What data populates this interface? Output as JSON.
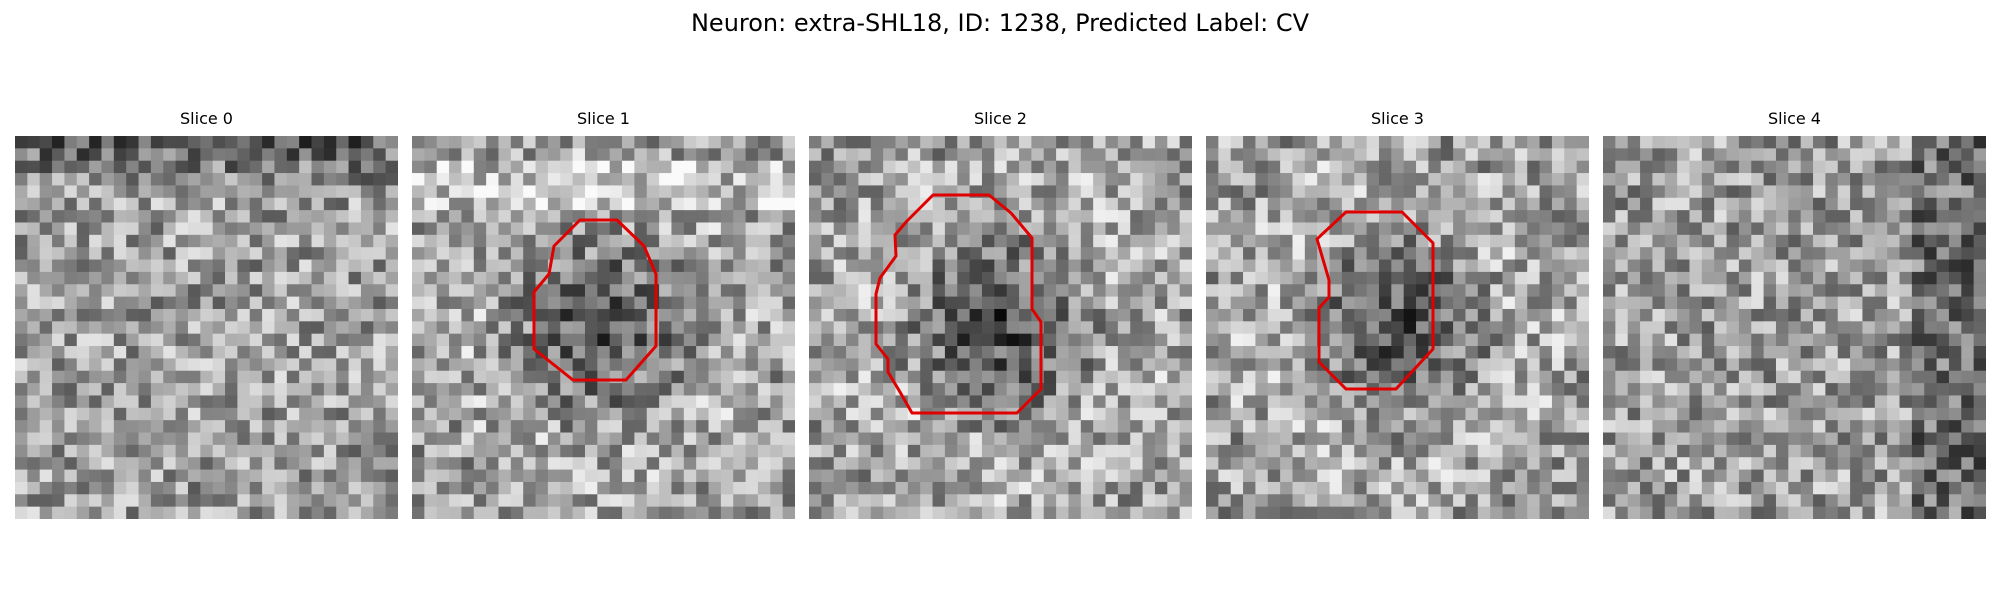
{
  "figure": {
    "title": "Neuron: extra-SHL18, ID: 1238, Predicted Label: CV"
  },
  "colors": {
    "contour": "#e00000",
    "background": "#ffffff"
  },
  "panels": [
    {
      "title": "Slice 0",
      "seed": 11,
      "dark_center": 0.0,
      "top_band": "dark"
    },
    {
      "title": "Slice 1",
      "seed": 23,
      "dark_center": 0.55,
      "top_band": "light"
    },
    {
      "title": "Slice 2",
      "seed": 37,
      "dark_center": 0.6,
      "top_band": "none"
    },
    {
      "title": "Slice 3",
      "seed": 41,
      "dark_center": 0.55,
      "top_band": "none"
    },
    {
      "title": "Slice 4",
      "seed": 59,
      "dark_center": 0.0,
      "top_band": "none"
    }
  ]
}
